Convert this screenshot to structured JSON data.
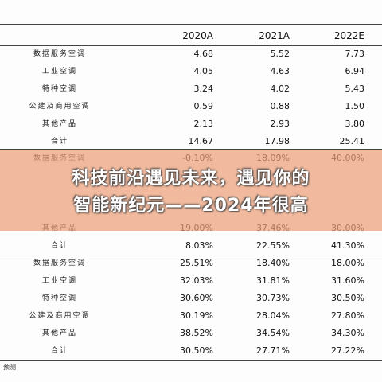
{
  "table": {
    "columns": [
      "2020A",
      "2021A",
      "2022E"
    ],
    "sections": [
      [
        {
          "label": "数据服务空调",
          "values": [
            "4.68",
            "5.52",
            "7.73"
          ]
        },
        {
          "label": "工业空调",
          "values": [
            "4.05",
            "4.63",
            "6.94"
          ]
        },
        {
          "label": "特种空调",
          "values": [
            "3.24",
            "4.02",
            "5.43"
          ]
        },
        {
          "label": "公建及商用空调",
          "values": [
            "0.59",
            "0.88",
            "1.50"
          ]
        },
        {
          "label": "其他产品",
          "values": [
            "2.13",
            "2.93",
            "3.80"
          ]
        },
        {
          "label": "合计",
          "values": [
            "14.67",
            "17.98",
            "25.41"
          ]
        }
      ],
      [
        {
          "label": "数据服务空调",
          "values": [
            "-0.10%",
            "18.09%",
            "40.00%"
          ]
        },
        null,
        null,
        null,
        {
          "label": "其他产品",
          "values": [
            "19.00%",
            "37.46%",
            "30.00%"
          ]
        },
        {
          "label": "合计",
          "values": [
            "8.03%",
            "22.55%",
            "41.30%"
          ]
        }
      ],
      [
        {
          "label": "数据服务空调",
          "values": [
            "25.51%",
            "18.40%",
            "18.00%"
          ]
        },
        {
          "label": "工业空调",
          "values": [
            "32.03%",
            "31.81%",
            "31.60%"
          ]
        },
        {
          "label": "特种空调",
          "values": [
            "30.60%",
            "30.73%",
            "30.50%"
          ]
        },
        {
          "label": "公建及商用空调",
          "values": [
            "30.19%",
            "28.04%",
            "27.80%"
          ]
        },
        {
          "label": "其他产品",
          "values": [
            "38.52%",
            "34.54%",
            "34.30%"
          ]
        },
        {
          "label": "合计",
          "values": [
            "30.50%",
            "27.71%",
            "27.22%"
          ]
        }
      ]
    ],
    "footnote": "预测"
  },
  "banner": {
    "lines": [
      "科技前沿遇见未来，遇见你的",
      "智能新纪元——2024年很高"
    ]
  }
}
